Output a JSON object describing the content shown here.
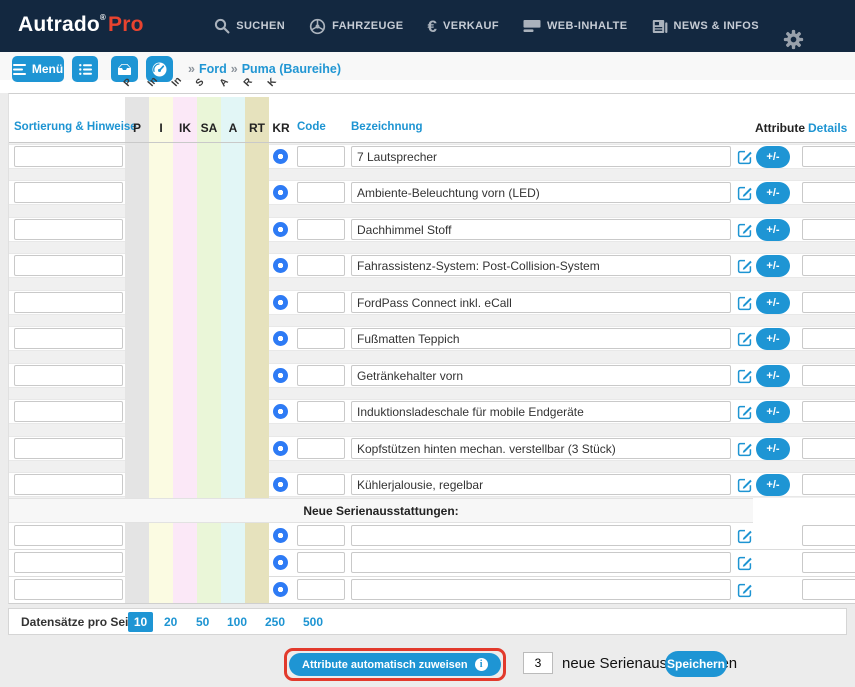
{
  "topbar": {
    "logo": {
      "name": "Autrado",
      "reg": "®",
      "suffix": "Pro"
    },
    "nav": [
      {
        "label": "SUCHEN"
      },
      {
        "label": "FAHRZEUGE"
      },
      {
        "label": "VERKAUF"
      },
      {
        "label": "WEB-INHALTE"
      },
      {
        "label": "NEWS & INFOS"
      }
    ]
  },
  "toolbar": {
    "menu_label": "Menü",
    "breadcrumb": {
      "sep": "»",
      "items": [
        "Ford",
        "Puma (Baureihe)"
      ]
    }
  },
  "table": {
    "headers": {
      "sortierung": "Sortierung & Hinweise",
      "code": "Code",
      "bezeichnung": "Bezeichnung",
      "attribute": "Attribute",
      "details": "Details"
    },
    "columns": [
      {
        "key": "P",
        "color": "#e4e4e4",
        "rotated_fragment": "P"
      },
      {
        "key": "I",
        "color": "#fbfbe2",
        "rotated_fragment": "In"
      },
      {
        "key": "IK",
        "color": "#fbe8f7",
        "rotated_fragment": "In"
      },
      {
        "key": "SA",
        "color": "#eaf6d8",
        "rotated_fragment": "S"
      },
      {
        "key": "A",
        "color": "#e2f6f6",
        "rotated_fragment": "A"
      },
      {
        "key": "RT",
        "color": "#e6e2bd",
        "rotated_fragment": "R"
      },
      {
        "key": "KR",
        "color": null,
        "rotated_fragment": "K"
      }
    ],
    "selected_column": "KR",
    "attribute_button_label": "+/-",
    "rows": [
      {
        "sort": "",
        "code": "",
        "bezeichnung": "7 Lautsprecher",
        "details": ""
      },
      {
        "sort": "",
        "code": "",
        "bezeichnung": "Ambiente-Beleuchtung vorn (LED)",
        "details": ""
      },
      {
        "sort": "",
        "code": "",
        "bezeichnung": "Dachhimmel Stoff",
        "details": ""
      },
      {
        "sort": "",
        "code": "",
        "bezeichnung": "Fahrassistenz-System: Post-Collision-System",
        "details": ""
      },
      {
        "sort": "",
        "code": "",
        "bezeichnung": "FordPass Connect inkl. eCall",
        "details": ""
      },
      {
        "sort": "",
        "code": "",
        "bezeichnung": "Fußmatten Teppich",
        "details": ""
      },
      {
        "sort": "",
        "code": "",
        "bezeichnung": "Getränkehalter vorn",
        "details": ""
      },
      {
        "sort": "",
        "code": "",
        "bezeichnung": "Induktionsladeschale für mobile Endgeräte",
        "details": ""
      },
      {
        "sort": "",
        "code": "",
        "bezeichnung": "Kopfstützen hinten mechan. verstellbar (3 Stück)",
        "details": ""
      },
      {
        "sort": "",
        "code": "",
        "bezeichnung": "Kühlerjalousie, regelbar",
        "details": ""
      }
    ],
    "new_section_label": "Neue Serienausstattungen:",
    "new_rows": [
      {
        "sort": "",
        "code": "",
        "bezeichnung": "",
        "details": ""
      },
      {
        "sort": "",
        "code": "",
        "bezeichnung": "",
        "details": ""
      },
      {
        "sort": "",
        "code": "",
        "bezeichnung": "",
        "details": ""
      }
    ]
  },
  "pagination": {
    "label": "Datensätze pro Seite:",
    "options": [
      "10",
      "20",
      "50",
      "100",
      "250",
      "500"
    ],
    "selected": "10"
  },
  "footer": {
    "assign_button_label": "Attribute automatisch zuweisen",
    "count_value": "3",
    "count_label": "neue Serienausstattungen",
    "save_label": "Speichern"
  },
  "colors": {
    "topbar_bg": "#132840",
    "accent_blue": "#1e95d4",
    "logo_red": "#e8432f",
    "selected_radio": "#2e7bf5",
    "highlight_red": "#e23a2c"
  }
}
